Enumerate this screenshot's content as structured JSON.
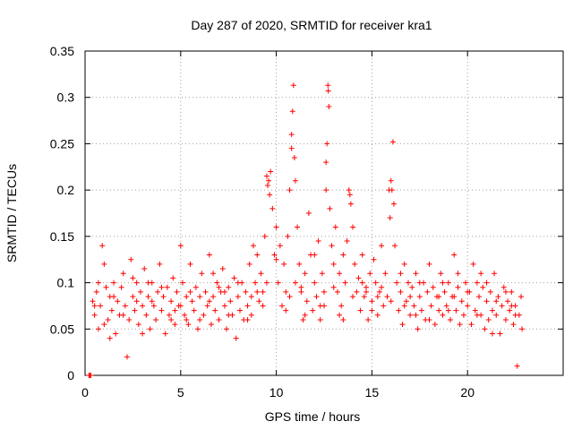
{
  "chart_data": {
    "type": "scatter",
    "title": "Day 287 of 2020, SRMTID for receiver kra1",
    "xlabel": "GPS time / hours",
    "ylabel": "SRMTID / TECUs",
    "xlim": [
      0,
      25
    ],
    "ylim": [
      0,
      0.35
    ],
    "xticks": [
      0,
      5,
      10,
      15,
      20
    ],
    "xtick_labels": [
      "0",
      "5",
      "10",
      "15",
      "20"
    ],
    "yticks": [
      0,
      0.05,
      0.1,
      0.15,
      0.2,
      0.25,
      0.3,
      0.35
    ],
    "ytick_labels": [
      "0",
      "0.05",
      "0.1",
      "0.15",
      "0.2",
      "0.25",
      "0.3",
      "0.35"
    ],
    "grid": true,
    "marker": "+",
    "color": "#ff0000",
    "series": [
      {
        "name": "kra1",
        "points": [
          [
            0.2,
            0.0
          ],
          [
            0.25,
            0.0
          ],
          [
            0.3,
            0.0
          ],
          [
            0.4,
            0.08
          ],
          [
            0.5,
            0.065
          ],
          [
            0.6,
            0.09
          ],
          [
            0.7,
            0.05
          ],
          [
            0.8,
            0.075
          ],
          [
            0.9,
            0.14
          ],
          [
            1.0,
            0.12
          ],
          [
            1.1,
            0.095
          ],
          [
            1.2,
            0.06
          ],
          [
            1.3,
            0.085
          ],
          [
            1.4,
            0.07
          ],
          [
            1.5,
            0.1
          ],
          [
            1.6,
            0.045
          ],
          [
            1.7,
            0.08
          ],
          [
            1.8,
            0.065
          ],
          [
            1.9,
            0.095
          ],
          [
            2.0,
            0.11
          ],
          [
            2.1,
            0.075
          ],
          [
            2.2,
            0.02
          ],
          [
            2.3,
            0.06
          ],
          [
            2.4,
            0.125
          ],
          [
            2.5,
            0.085
          ],
          [
            2.6,
            0.07
          ],
          [
            2.7,
            0.1
          ],
          [
            2.8,
            0.055
          ],
          [
            2.9,
            0.09
          ],
          [
            3.0,
            0.075
          ],
          [
            3.1,
            0.115
          ],
          [
            3.2,
            0.065
          ],
          [
            3.3,
            0.085
          ],
          [
            3.4,
            0.05
          ],
          [
            3.5,
            0.1
          ],
          [
            3.6,
            0.075
          ],
          [
            3.7,
            0.06
          ],
          [
            3.8,
            0.09
          ],
          [
            3.9,
            0.12
          ],
          [
            4.0,
            0.07
          ],
          [
            4.1,
            0.085
          ],
          [
            4.2,
            0.045
          ],
          [
            4.3,
            0.095
          ],
          [
            4.4,
            0.065
          ],
          [
            4.5,
            0.08
          ],
          [
            4.6,
            0.105
          ],
          [
            4.7,
            0.055
          ],
          [
            4.8,
            0.09
          ],
          [
            4.9,
            0.075
          ],
          [
            5.0,
            0.14
          ],
          [
            5.1,
            0.1
          ],
          [
            5.2,
            0.065
          ],
          [
            5.3,
            0.085
          ],
          [
            5.4,
            0.055
          ],
          [
            5.5,
            0.12
          ],
          [
            5.6,
            0.08
          ],
          [
            5.7,
            0.07
          ],
          [
            5.8,
            0.095
          ],
          [
            5.9,
            0.05
          ],
          [
            6.0,
            0.085
          ],
          [
            6.1,
            0.11
          ],
          [
            6.2,
            0.065
          ],
          [
            6.3,
            0.09
          ],
          [
            6.4,
            0.075
          ],
          [
            6.5,
            0.13
          ],
          [
            6.6,
            0.055
          ],
          [
            6.7,
            0.085
          ],
          [
            6.8,
            0.07
          ],
          [
            6.9,
            0.1
          ],
          [
            7.0,
            0.06
          ],
          [
            7.1,
            0.09
          ],
          [
            7.2,
            0.115
          ],
          [
            7.3,
            0.075
          ],
          [
            7.4,
            0.05
          ],
          [
            7.5,
            0.095
          ],
          [
            7.6,
            0.08
          ],
          [
            7.7,
            0.065
          ],
          [
            7.8,
            0.105
          ],
          [
            7.9,
            0.04
          ],
          [
            8.0,
            0.085
          ],
          [
            8.1,
            0.07
          ],
          [
            8.2,
            0.1
          ],
          [
            8.3,
            0.06
          ],
          [
            8.4,
            0.09
          ],
          [
            8.5,
            0.075
          ],
          [
            8.6,
            0.12
          ],
          [
            8.7,
            0.085
          ],
          [
            8.8,
            0.14
          ],
          [
            8.9,
            0.1
          ],
          [
            9.0,
            0.13
          ],
          [
            9.1,
            0.08
          ],
          [
            9.2,
            0.11
          ],
          [
            9.3,
            0.09
          ],
          [
            9.4,
            0.15
          ],
          [
            9.5,
            0.215
          ],
          [
            9.6,
            0.21
          ],
          [
            9.7,
            0.22
          ],
          [
            9.8,
            0.18
          ],
          [
            9.9,
            0.13
          ],
          [
            10.0,
            0.16
          ],
          [
            10.1,
            0.1
          ],
          [
            10.2,
            0.14
          ],
          [
            10.3,
            0.075
          ],
          [
            10.4,
            0.12
          ],
          [
            10.5,
            0.09
          ],
          [
            10.6,
            0.15
          ],
          [
            10.7,
            0.2
          ],
          [
            10.8,
            0.26
          ],
          [
            10.85,
            0.285
          ],
          [
            10.9,
            0.313
          ],
          [
            10.95,
            0.235
          ],
          [
            11.0,
            0.21
          ],
          [
            11.1,
            0.16
          ],
          [
            11.2,
            0.12
          ],
          [
            11.3,
            0.09
          ],
          [
            11.4,
            0.06
          ],
          [
            11.5,
            0.11
          ],
          [
            11.6,
            0.08
          ],
          [
            11.7,
            0.175
          ],
          [
            11.8,
            0.13
          ],
          [
            11.9,
            0.07
          ],
          [
            12.0,
            0.1
          ],
          [
            12.1,
            0.085
          ],
          [
            12.2,
            0.145
          ],
          [
            12.3,
            0.06
          ],
          [
            12.4,
            0.11
          ],
          [
            12.5,
            0.09
          ],
          [
            12.6,
            0.2
          ],
          [
            12.65,
            0.25
          ],
          [
            12.7,
            0.313
          ],
          [
            12.72,
            0.307
          ],
          [
            12.75,
            0.29
          ],
          [
            12.8,
            0.18
          ],
          [
            12.9,
            0.14
          ],
          [
            13.0,
            0.12
          ],
          [
            13.1,
            0.16
          ],
          [
            13.2,
            0.09
          ],
          [
            13.3,
            0.11
          ],
          [
            13.4,
            0.075
          ],
          [
            13.5,
            0.13
          ],
          [
            13.6,
            0.1
          ],
          [
            13.7,
            0.145
          ],
          [
            13.8,
            0.2
          ],
          [
            13.9,
            0.185
          ],
          [
            14.0,
            0.16
          ],
          [
            14.1,
            0.12
          ],
          [
            14.2,
            0.09
          ],
          [
            14.3,
            0.105
          ],
          [
            14.4,
            0.07
          ],
          [
            14.5,
            0.13
          ],
          [
            14.6,
            0.085
          ],
          [
            14.7,
            0.095
          ],
          [
            14.8,
            0.06
          ],
          [
            14.9,
            0.11
          ],
          [
            15.0,
            0.08
          ],
          [
            15.1,
            0.125
          ],
          [
            15.2,
            0.1
          ],
          [
            15.3,
            0.065
          ],
          [
            15.4,
            0.09
          ],
          [
            15.5,
            0.14
          ],
          [
            15.6,
            0.075
          ],
          [
            15.7,
            0.11
          ],
          [
            15.8,
            0.085
          ],
          [
            15.9,
            0.2
          ],
          [
            16.0,
            0.21
          ],
          [
            16.1,
            0.252
          ],
          [
            16.15,
            0.185
          ],
          [
            16.2,
            0.14
          ],
          [
            16.3,
            0.1
          ],
          [
            16.4,
            0.07
          ],
          [
            16.5,
            0.09
          ],
          [
            16.6,
            0.055
          ],
          [
            16.7,
            0.12
          ],
          [
            16.8,
            0.08
          ],
          [
            16.9,
            0.1
          ],
          [
            17.0,
            0.065
          ],
          [
            17.1,
            0.095
          ],
          [
            17.2,
            0.075
          ],
          [
            17.3,
            0.11
          ],
          [
            17.4,
            0.05
          ],
          [
            17.5,
            0.085
          ],
          [
            17.6,
            0.07
          ],
          [
            17.7,
            0.1
          ],
          [
            17.8,
            0.06
          ],
          [
            17.9,
            0.09
          ],
          [
            18.0,
            0.12
          ],
          [
            18.1,
            0.075
          ],
          [
            18.2,
            0.095
          ],
          [
            18.3,
            0.055
          ],
          [
            18.4,
            0.085
          ],
          [
            18.5,
            0.07
          ],
          [
            18.6,
            0.11
          ],
          [
            18.7,
            0.065
          ],
          [
            18.8,
            0.09
          ],
          [
            18.9,
            0.075
          ],
          [
            19.0,
            0.1
          ],
          [
            19.1,
            0.06
          ],
          [
            19.2,
            0.085
          ],
          [
            19.3,
            0.13
          ],
          [
            19.4,
            0.07
          ],
          [
            19.5,
            0.095
          ],
          [
            19.6,
            0.055
          ],
          [
            19.7,
            0.08
          ],
          [
            19.8,
            0.065
          ],
          [
            19.9,
            0.1
          ],
          [
            20.0,
            0.075
          ],
          [
            20.1,
            0.09
          ],
          [
            20.2,
            0.055
          ],
          [
            20.3,
            0.12
          ],
          [
            20.4,
            0.07
          ],
          [
            20.5,
            0.1
          ],
          [
            20.6,
            0.085
          ],
          [
            20.7,
            0.065
          ],
          [
            20.8,
            0.095
          ],
          [
            20.9,
            0.05
          ],
          [
            21.0,
            0.08
          ],
          [
            21.1,
            0.06
          ],
          [
            21.2,
            0.09
          ],
          [
            21.3,
            0.07
          ],
          [
            21.4,
            0.11
          ],
          [
            21.5,
            0.065
          ],
          [
            21.6,
            0.085
          ],
          [
            21.7,
            0.045
          ],
          [
            21.8,
            0.075
          ],
          [
            21.9,
            0.095
          ],
          [
            22.0,
            0.06
          ],
          [
            22.1,
            0.08
          ],
          [
            22.2,
            0.07
          ],
          [
            22.3,
            0.09
          ],
          [
            22.4,
            0.055
          ],
          [
            22.5,
            0.075
          ],
          [
            22.6,
            0.01
          ],
          [
            22.7,
            0.065
          ],
          [
            22.8,
            0.085
          ],
          [
            22.85,
            0.05
          ],
          [
            0.5,
            0.075
          ],
          [
            1.0,
            0.055
          ],
          [
            1.5,
            0.085
          ],
          [
            2.0,
            0.065
          ],
          [
            2.5,
            0.105
          ],
          [
            3.0,
            0.045
          ],
          [
            3.5,
            0.08
          ],
          [
            4.0,
            0.095
          ],
          [
            4.5,
            0.06
          ],
          [
            5.0,
            0.075
          ],
          [
            5.5,
            0.09
          ],
          [
            6.0,
            0.06
          ],
          [
            6.5,
            0.08
          ],
          [
            7.0,
            0.095
          ],
          [
            7.5,
            0.065
          ],
          [
            8.0,
            0.1
          ],
          [
            8.5,
            0.06
          ],
          [
            9.0,
            0.09
          ],
          [
            9.5,
            0.1
          ],
          [
            10.0,
            0.125
          ],
          [
            10.5,
            0.07
          ],
          [
            11.0,
            0.1
          ],
          [
            11.5,
            0.065
          ],
          [
            12.0,
            0.13
          ],
          [
            12.5,
            0.075
          ],
          [
            13.0,
            0.095
          ],
          [
            13.5,
            0.06
          ],
          [
            14.0,
            0.085
          ],
          [
            14.5,
            0.1
          ],
          [
            15.0,
            0.07
          ],
          [
            15.5,
            0.095
          ],
          [
            16.0,
            0.08
          ],
          [
            16.5,
            0.11
          ],
          [
            17.0,
            0.085
          ],
          [
            17.5,
            0.1
          ],
          [
            18.0,
            0.06
          ],
          [
            18.5,
            0.085
          ],
          [
            19.0,
            0.07
          ],
          [
            19.5,
            0.11
          ],
          [
            20.0,
            0.09
          ],
          [
            20.5,
            0.065
          ],
          [
            21.0,
            0.1
          ],
          [
            21.5,
            0.08
          ],
          [
            22.0,
            0.09
          ],
          [
            22.5,
            0.065
          ],
          [
            0.7,
            0.1
          ],
          [
            1.3,
            0.04
          ],
          [
            2.7,
            0.08
          ],
          [
            3.3,
            0.1
          ],
          [
            4.7,
            0.07
          ],
          [
            5.3,
            0.06
          ],
          [
            6.7,
            0.11
          ],
          [
            7.3,
            0.09
          ],
          [
            8.7,
            0.065
          ],
          [
            9.3,
            0.075
          ],
          [
            10.7,
            0.085
          ],
          [
            11.3,
            0.095
          ],
          [
            12.3,
            0.075
          ],
          [
            13.3,
            0.065
          ],
          [
            14.7,
            0.09
          ],
          [
            15.3,
            0.085
          ],
          [
            16.7,
            0.075
          ],
          [
            17.3,
            0.065
          ],
          [
            18.7,
            0.1
          ],
          [
            19.3,
            0.085
          ],
          [
            20.7,
            0.11
          ],
          [
            21.3,
            0.045
          ],
          [
            22.3,
            0.075
          ],
          [
            9.55,
            0.205
          ],
          [
            9.65,
            0.195
          ],
          [
            10.8,
            0.245
          ],
          [
            12.6,
            0.23
          ],
          [
            15.95,
            0.17
          ],
          [
            16.05,
            0.2
          ],
          [
            13.85,
            0.195
          ]
        ]
      }
    ]
  }
}
